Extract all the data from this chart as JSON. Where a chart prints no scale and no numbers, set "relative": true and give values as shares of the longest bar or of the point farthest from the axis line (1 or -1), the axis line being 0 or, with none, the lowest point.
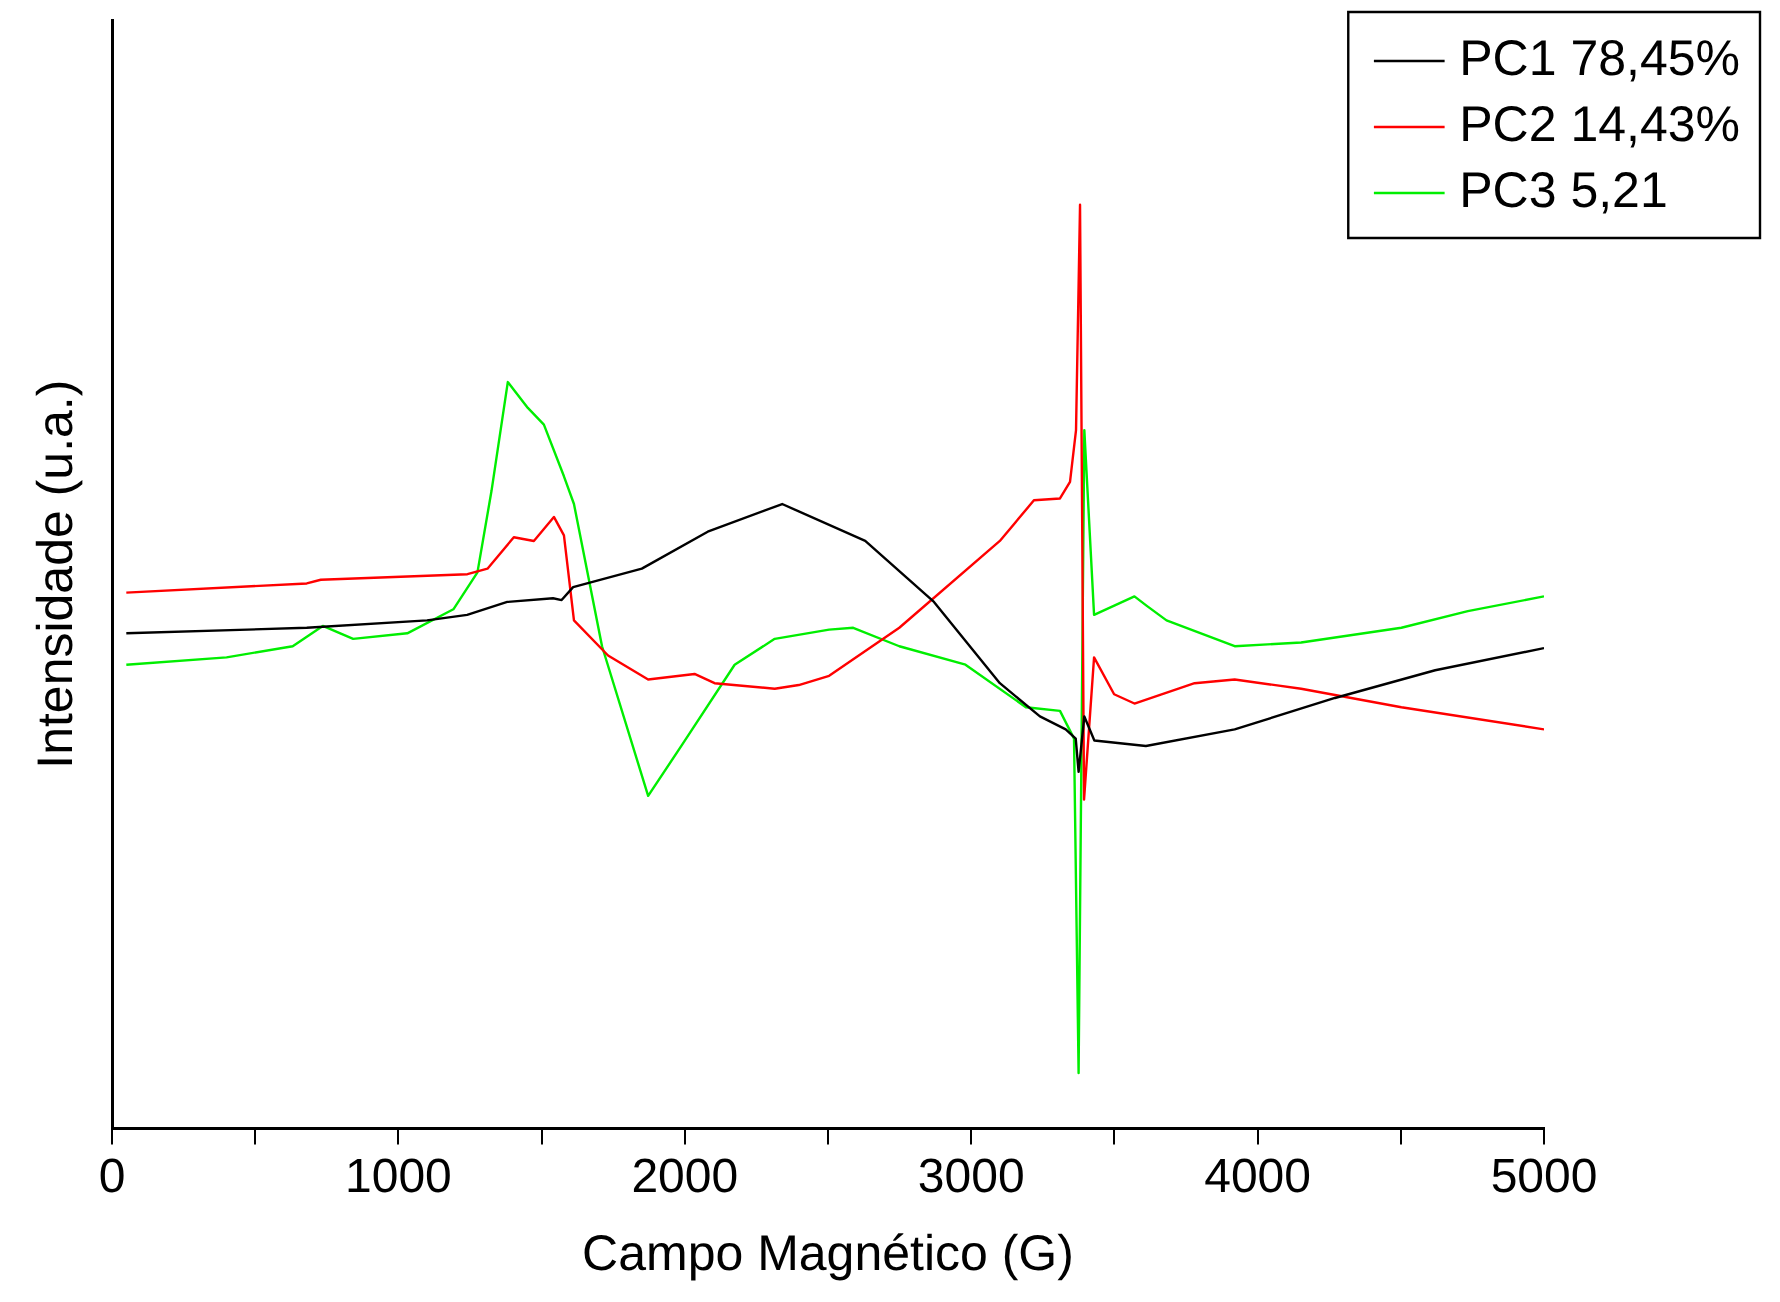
{
  "chart_data": {
    "type": "line",
    "xlabel": "Campo Magnético (G)",
    "ylabel": "Intensidade (u.a.)",
    "relative": true,
    "xlim": [
      0,
      5000
    ],
    "xticks": [
      0,
      {
        "value": 500,
        "label": null
      },
      1000,
      {
        "value": 1500,
        "label": null
      },
      2000,
      {
        "value": 2500,
        "label": null
      },
      3000,
      {
        "value": 3500,
        "label": null
      },
      4000,
      {
        "value": 4500,
        "label": null
      },
      5000
    ],
    "legend": "top right",
    "grid": false,
    "marker": "none",
    "line_style": "solid",
    "series": [
      {
        "name": "PC1 78,45%",
        "color": "#000000",
        "x": [
          50,
          680,
          1100,
          1240,
          1380,
          1540,
          1570,
          1610,
          1850,
          2080,
          2340,
          2630,
          2870,
          3100,
          3240,
          3330,
          3365,
          3375,
          3395,
          3430,
          3610,
          3920,
          4270,
          4620,
          5000
        ],
        "values": [
          0.536,
          0.542,
          0.55,
          0.556,
          0.57,
          0.574,
          0.572,
          0.586,
          0.606,
          0.646,
          0.676,
          0.636,
          0.57,
          0.482,
          0.446,
          0.432,
          0.422,
          0.386,
          0.446,
          0.42,
          0.414,
          0.432,
          0.466,
          0.496,
          0.52
        ]
      },
      {
        "name": "PC2 14,43%",
        "color": "#ff0000",
        "x": [
          50,
          680,
          729,
          1241,
          1311,
          1403,
          1473,
          1543,
          1578,
          1613,
          1732,
          1872,
          2034,
          2104,
          2314,
          2398,
          2504,
          2749,
          3100,
          3219,
          3310,
          3345,
          3366,
          3380,
          3394,
          3429,
          3499,
          3570,
          3780,
          3920,
          4152,
          4502,
          5000
        ],
        "values": [
          0.58,
          0.59,
          0.594,
          0.6,
          0.606,
          0.64,
          0.636,
          0.662,
          0.642,
          0.55,
          0.512,
          0.486,
          0.492,
          0.482,
          0.476,
          0.48,
          0.49,
          0.542,
          0.636,
          0.68,
          0.682,
          0.7,
          0.756,
          1.0,
          0.356,
          0.51,
          0.47,
          0.46,
          0.482,
          0.486,
          0.476,
          0.456,
          0.432
        ]
      },
      {
        "name": "PC3 5,21",
        "color": "#00ee00",
        "x": [
          50,
          400,
          631,
          736,
          842,
          1031,
          1192,
          1276,
          1325,
          1382,
          1452,
          1508,
          1578,
          1613,
          1711,
          1872,
          1992,
          2174,
          2314,
          2504,
          2588,
          2749,
          2980,
          3191,
          3310,
          3359,
          3375,
          3395,
          3429,
          3570,
          3612,
          3682,
          3920,
          4152,
          4502,
          4734,
          5000
        ],
        "values": [
          0.502,
          0.51,
          0.522,
          0.544,
          0.53,
          0.536,
          0.562,
          0.602,
          0.69,
          0.808,
          0.78,
          0.762,
          0.706,
          0.676,
          0.522,
          0.36,
          0.416,
          0.502,
          0.53,
          0.54,
          0.542,
          0.522,
          0.502,
          0.456,
          0.452,
          0.422,
          0.06,
          0.756,
          0.556,
          0.576,
          0.566,
          0.55,
          0.522,
          0.526,
          0.542,
          0.56,
          0.576
        ]
      }
    ]
  }
}
